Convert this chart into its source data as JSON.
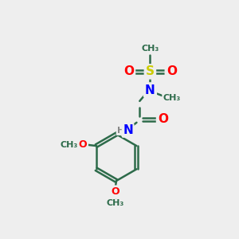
{
  "bg_color": "#eeeeee",
  "bond_color": "#2d6b4a",
  "bond_width": 1.8,
  "atom_colors": {
    "S": "#cccc00",
    "O": "#ff0000",
    "N": "#0000ff",
    "C": "#2d6b4a",
    "H": "#888888"
  },
  "font_size": 10,
  "fig_size": [
    3.0,
    3.0
  ],
  "dpi": 100,
  "xlim": [
    0,
    300
  ],
  "ylim": [
    0,
    300
  ]
}
